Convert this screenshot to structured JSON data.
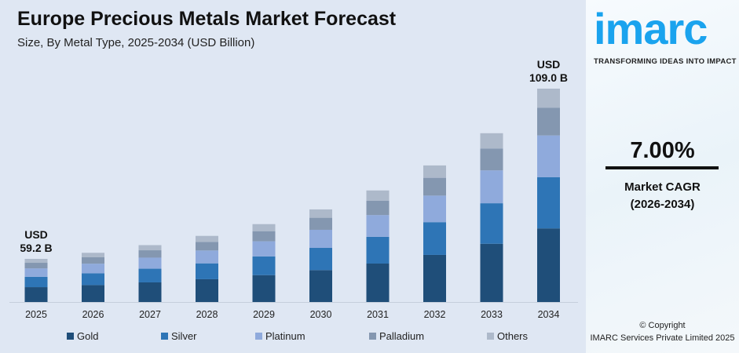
{
  "chart_data": {
    "type": "bar",
    "stacked": true,
    "title": "Europe Precious Metals Market Forecast",
    "subtitle": "Size, By Metal Type, 2025-2034 (USD Billion)",
    "categories": [
      "2025",
      "2026",
      "2027",
      "2028",
      "2029",
      "2030",
      "2031",
      "2032",
      "2033",
      "2034"
    ],
    "series": [
      {
        "name": "Gold",
        "color": "#1f4e79",
        "values": [
          20.4,
          21.8,
          23.4,
          25.0,
          26.8,
          28.6,
          30.6,
          32.8,
          35.1,
          37.6
        ]
      },
      {
        "name": "Silver",
        "color": "#2e75b6",
        "values": [
          14.2,
          15.2,
          16.3,
          17.4,
          18.6,
          19.9,
          21.3,
          22.8,
          24.4,
          26.2
        ]
      },
      {
        "name": "Platinum",
        "color": "#8faadc",
        "values": [
          11.5,
          12.3,
          13.2,
          14.1,
          15.1,
          16.2,
          17.3,
          18.5,
          19.8,
          21.3
        ]
      },
      {
        "name": "Palladium",
        "color": "#8497b0",
        "values": [
          7.7,
          8.2,
          8.8,
          9.4,
          10.1,
          10.8,
          11.5,
          12.4,
          13.2,
          14.2
        ]
      },
      {
        "name": "Others",
        "color": "#adb9ca",
        "values": [
          5.4,
          5.8,
          6.1,
          6.6,
          7.0,
          7.5,
          8.1,
          8.6,
          9.2,
          9.7
        ]
      }
    ],
    "annotations": [
      {
        "category": "2025",
        "line1": "USD",
        "line2": "59.2 B"
      },
      {
        "category": "2034",
        "line1": "USD",
        "line2": "109.0 B"
      }
    ],
    "legend_position": "bottom",
    "grid": false
  },
  "panel": {
    "logo": "imarc",
    "tagline": "TRANSFORMING IDEAS INTO IMPACT",
    "cagr_value": "7.00%",
    "cagr_label": "Market CAGR",
    "cagr_period": "(2026-2034)",
    "copyright": "© Copyright",
    "company": "IMARC Services Private Limited 2025"
  }
}
